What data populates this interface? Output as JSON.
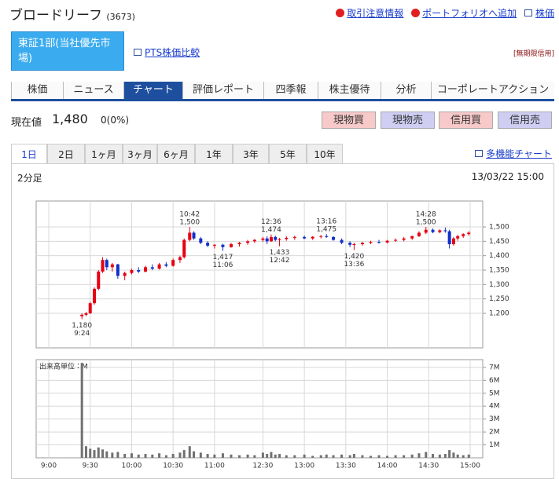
{
  "header": {
    "title": "ブロードリーフ",
    "code": "(3673)",
    "links": [
      "取引注意情報",
      "ポートフォリオへ追加",
      "株価"
    ]
  },
  "market": {
    "name": "東証1部(当社優先市場)",
    "pts_link": "PTS株価比較",
    "credit_note": "[無期限信用]"
  },
  "tabs": {
    "items": [
      "株価",
      "ニュース",
      "チャート",
      "評価レポート",
      "四季報",
      "株主優待",
      "分析",
      "コーポレートアクション"
    ],
    "active": 2
  },
  "price": {
    "label": "現在値",
    "value": "1,480",
    "change": "0(0%)"
  },
  "buttons": [
    {
      "text": "現物買",
      "color": "#f7c9c9"
    },
    {
      "text": "現物売",
      "color": "#cfcdf2"
    },
    {
      "text": "信用買",
      "color": "#f7c9c9"
    },
    {
      "text": "信用売",
      "color": "#cfcdf2"
    }
  ],
  "periods": {
    "items": [
      "1日",
      "2日",
      "1ヶ月",
      "3ヶ月",
      "6ヶ月",
      "1年",
      "3年",
      "5年",
      "10年"
    ],
    "active": 0
  },
  "chart_link": "多機能チャート",
  "chart_panel": {
    "interval": "2分足",
    "timestamp": "13/03/22 15:00"
  },
  "chart_data": [
    {
      "type": "candlestick",
      "x": [
        24,
        27,
        30,
        33,
        36,
        39,
        42,
        46,
        50,
        55,
        60,
        65,
        70,
        75,
        80,
        85,
        90,
        95,
        98,
        102,
        105,
        110,
        115,
        120,
        126,
        132,
        138,
        144,
        149,
        155,
        158,
        161,
        164,
        167,
        172,
        178,
        185,
        191,
        197,
        201,
        206,
        212,
        218,
        221,
        227,
        233,
        239,
        245,
        251,
        257,
        263,
        268,
        273,
        278,
        283,
        287,
        290,
        293,
        296,
        300,
        304
      ],
      "ohlc": [
        [
          1190,
          1200,
          1180,
          1195
        ],
        [
          1195,
          1205,
          1190,
          1200
        ],
        [
          1200,
          1240,
          1198,
          1235
        ],
        [
          1235,
          1290,
          1230,
          1285
        ],
        [
          1285,
          1350,
          1280,
          1345
        ],
        [
          1345,
          1395,
          1340,
          1385
        ],
        [
          1385,
          1390,
          1350,
          1360
        ],
        [
          1360,
          1375,
          1345,
          1370
        ],
        [
          1370,
          1372,
          1320,
          1330
        ],
        [
          1330,
          1345,
          1315,
          1340
        ],
        [
          1340,
          1355,
          1335,
          1350
        ],
        [
          1350,
          1360,
          1340,
          1345
        ],
        [
          1345,
          1365,
          1342,
          1360
        ],
        [
          1360,
          1370,
          1350,
          1355
        ],
        [
          1355,
          1375,
          1352,
          1370
        ],
        [
          1370,
          1378,
          1360,
          1365
        ],
        [
          1365,
          1390,
          1362,
          1385
        ],
        [
          1385,
          1400,
          1375,
          1395
        ],
        [
          1395,
          1460,
          1390,
          1455
        ],
        [
          1455,
          1500,
          1450,
          1480
        ],
        [
          1480,
          1485,
          1455,
          1460
        ],
        [
          1460,
          1465,
          1440,
          1445
        ],
        [
          1445,
          1450,
          1430,
          1435
        ],
        [
          1435,
          1440,
          1425,
          1438
        ],
        [
          1438,
          1442,
          1417,
          1430
        ],
        [
          1430,
          1445,
          1428,
          1440
        ],
        [
          1440,
          1448,
          1432,
          1445
        ],
        [
          1445,
          1455,
          1438,
          1450
        ],
        [
          1450,
          1458,
          1445,
          1455
        ],
        [
          1455,
          1465,
          1448,
          1460
        ],
        [
          1460,
          1468,
          1440,
          1450
        ],
        [
          1450,
          1474,
          1448,
          1465
        ],
        [
          1465,
          1470,
          1450,
          1455
        ],
        [
          1455,
          1462,
          1433,
          1458
        ],
        [
          1458,
          1468,
          1452,
          1462
        ],
        [
          1462,
          1470,
          1455,
          1465
        ],
        [
          1465,
          1470,
          1458,
          1460
        ],
        [
          1460,
          1468,
          1455,
          1466
        ],
        [
          1466,
          1472,
          1460,
          1468
        ],
        [
          1468,
          1475,
          1462,
          1465
        ],
        [
          1465,
          1468,
          1452,
          1455
        ],
        [
          1455,
          1460,
          1440,
          1445
        ],
        [
          1445,
          1450,
          1430,
          1438
        ],
        [
          1438,
          1445,
          1420,
          1440
        ],
        [
          1440,
          1448,
          1435,
          1445
        ],
        [
          1445,
          1452,
          1440,
          1448
        ],
        [
          1448,
          1455,
          1442,
          1446
        ],
        [
          1446,
          1455,
          1443,
          1452
        ],
        [
          1452,
          1460,
          1448,
          1455
        ],
        [
          1455,
          1465,
          1450,
          1460
        ],
        [
          1460,
          1470,
          1455,
          1468
        ],
        [
          1468,
          1485,
          1465,
          1480
        ],
        [
          1480,
          1500,
          1475,
          1490
        ],
        [
          1490,
          1495,
          1478,
          1482
        ],
        [
          1482,
          1492,
          1478,
          1488
        ],
        [
          1488,
          1498,
          1480,
          1485
        ],
        [
          1485,
          1490,
          1425,
          1440
        ],
        [
          1440,
          1465,
          1435,
          1460
        ],
        [
          1460,
          1472,
          1452,
          1468
        ],
        [
          1468,
          1478,
          1462,
          1475
        ],
        [
          1475,
          1485,
          1470,
          1480
        ]
      ],
      "up_color": "#e60012",
      "down_color": "#1030c8",
      "xlim": [
        0,
        305
      ],
      "xticks": [
        0,
        30,
        60,
        90,
        120,
        155,
        185,
        215,
        245,
        275,
        305
      ],
      "ylim": [
        1080,
        1590
      ],
      "yticks": [
        {
          "value": 1200,
          "label": "1,200"
        },
        {
          "value": 1250,
          "label": "1,250"
        },
        {
          "value": 1300,
          "label": "1,300"
        },
        {
          "value": 1350,
          "label": "1,350"
        },
        {
          "value": 1400,
          "label": "1,400"
        },
        {
          "value": 1450,
          "label": "1,450"
        },
        {
          "value": 1500,
          "label": "1,500"
        }
      ],
      "grid": true,
      "annotations": [
        {
          "x": 24,
          "y": 1180,
          "text": [
            "1,180",
            "9:24"
          ],
          "side": "below"
        },
        {
          "x": 102,
          "y": 1500,
          "text": [
            "10:42",
            "1,500"
          ],
          "side": "above"
        },
        {
          "x": 126,
          "y": 1417,
          "text": [
            "1,417",
            "11:06"
          ],
          "side": "below"
        },
        {
          "x": 161,
          "y": 1474,
          "text": [
            "12:36",
            "1,474"
          ],
          "side": "above"
        },
        {
          "x": 167,
          "y": 1433,
          "text": [
            "1,433",
            "12:42"
          ],
          "side": "below"
        },
        {
          "x": 201,
          "y": 1475,
          "text": [
            "13:16",
            "1,475"
          ],
          "side": "above"
        },
        {
          "x": 221,
          "y": 1420,
          "text": [
            "1,420",
            "13:36"
          ],
          "side": "below"
        },
        {
          "x": 273,
          "y": 1500,
          "text": [
            "14:28",
            "1,500"
          ],
          "side": "above"
        }
      ]
    },
    {
      "type": "bar",
      "title": "出来高単位：M",
      "x": [
        24,
        27,
        30,
        33,
        36,
        39,
        42,
        46,
        50,
        55,
        60,
        65,
        70,
        75,
        80,
        85,
        90,
        95,
        98,
        102,
        105,
        110,
        115,
        120,
        126,
        132,
        138,
        144,
        149,
        155,
        158,
        161,
        164,
        167,
        172,
        178,
        185,
        191,
        197,
        201,
        206,
        212,
        218,
        221,
        227,
        233,
        239,
        245,
        251,
        257,
        263,
        268,
        273,
        278,
        283,
        287,
        290,
        293,
        296,
        300,
        304
      ],
      "values": [
        7350000,
        900000,
        700000,
        600000,
        800000,
        650000,
        500000,
        400000,
        450000,
        300000,
        350000,
        250000,
        300000,
        250000,
        350000,
        200000,
        300000,
        400000,
        600000,
        900000,
        500000,
        400000,
        300000,
        250000,
        350000,
        250000,
        200000,
        250000,
        200000,
        400000,
        300000,
        450000,
        250000,
        300000,
        200000,
        200000,
        250000,
        150000,
        200000,
        250000,
        200000,
        250000,
        200000,
        300000,
        200000,
        150000,
        200000,
        150000,
        200000,
        200000,
        250000,
        350000,
        450000,
        300000,
        250000,
        300000,
        600000,
        400000,
        250000,
        200000,
        250000
      ],
      "color": "#707070",
      "xlim": [
        0,
        305
      ],
      "xticks": [
        {
          "value": 0,
          "label": "9:00"
        },
        {
          "value": 30,
          "label": "9:30"
        },
        {
          "value": 60,
          "label": "10:00"
        },
        {
          "value": 90,
          "label": "10:30"
        },
        {
          "value": 120,
          "label": "11:00"
        },
        {
          "value": 155,
          "label": "12:30"
        },
        {
          "value": 185,
          "label": "13:00"
        },
        {
          "value": 215,
          "label": "13:30"
        },
        {
          "value": 245,
          "label": "14:00"
        },
        {
          "value": 275,
          "label": "14:30"
        },
        {
          "value": 305,
          "label": "15:00"
        }
      ],
      "ylim": [
        0,
        7600000
      ],
      "yticks": [
        {
          "value": 1000000,
          "label": "1M"
        },
        {
          "value": 2000000,
          "label": "2M"
        },
        {
          "value": 3000000,
          "label": "3M"
        },
        {
          "value": 4000000,
          "label": "4M"
        },
        {
          "value": 5000000,
          "label": "5M"
        },
        {
          "value": 6000000,
          "label": "6M"
        },
        {
          "value": 7000000,
          "label": "7M"
        }
      ],
      "grid": true
    }
  ]
}
